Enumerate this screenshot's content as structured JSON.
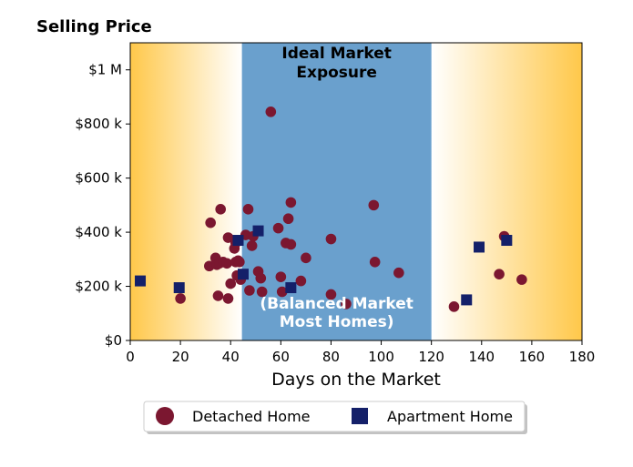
{
  "chart_data": {
    "type": "scatter",
    "ylabel": "Selling Price",
    "xlabel": "Days on the Market",
    "xlim": [
      0,
      180
    ],
    "ylim": [
      0,
      1100000
    ],
    "x_ticks": [
      0,
      20,
      40,
      60,
      80,
      100,
      120,
      140,
      160,
      180
    ],
    "x_tick_labels": [
      "0",
      "20",
      "40",
      "60",
      "80",
      "100",
      "120",
      "140",
      "160",
      "180"
    ],
    "y_ticks": [
      0,
      200000,
      400000,
      600000,
      800000,
      1000000
    ],
    "y_tick_labels": [
      "$0",
      "$200 k",
      "$400 k",
      "$600 k",
      "$800 k",
      "$1 M"
    ],
    "grid": false,
    "legend_position": "bottom-center",
    "zones": {
      "balanced_range": [
        44.5,
        120
      ],
      "balanced_color": "#6aa0cd",
      "gradient_color": "#ffc84a",
      "ideal_label_line1": "Ideal Market",
      "ideal_label_line2": "Exposure",
      "balanced_label_line1": "(Balanced Market",
      "balanced_label_line2": "Most Homes)"
    },
    "series": [
      {
        "name": "Detached Home",
        "marker": "circle",
        "color": "#7b1730",
        "points": [
          [
            20,
            155000
          ],
          [
            31.5,
            275000
          ],
          [
            32,
            435000
          ],
          [
            34,
            305000
          ],
          [
            34.5,
            280000
          ],
          [
            35,
            165000
          ],
          [
            35.5,
            285000
          ],
          [
            36,
            485000
          ],
          [
            37,
            290000
          ],
          [
            38.5,
            285000
          ],
          [
            39,
            155000
          ],
          [
            39,
            380000
          ],
          [
            40,
            210000
          ],
          [
            41.5,
            340000
          ],
          [
            42,
            290000
          ],
          [
            42,
            360000
          ],
          [
            42.5,
            240000
          ],
          [
            43,
            295000
          ],
          [
            43.5,
            290000
          ],
          [
            44,
            225000
          ],
          [
            46,
            390000
          ],
          [
            47,
            485000
          ],
          [
            47.5,
            185000
          ],
          [
            48.5,
            350000
          ],
          [
            49,
            385000
          ],
          [
            51,
            255000
          ],
          [
            52,
            230000
          ],
          [
            52.5,
            180000
          ],
          [
            56,
            845000
          ],
          [
            59,
            415000
          ],
          [
            60,
            235000
          ],
          [
            60.5,
            180000
          ],
          [
            62,
            360000
          ],
          [
            63,
            450000
          ],
          [
            64,
            355000
          ],
          [
            64,
            510000
          ],
          [
            68,
            220000
          ],
          [
            70,
            305000
          ],
          [
            80,
            375000
          ],
          [
            80,
            170000
          ],
          [
            86,
            135000
          ],
          [
            97,
            500000
          ],
          [
            97.5,
            290000
          ],
          [
            107,
            250000
          ],
          [
            129,
            125000
          ],
          [
            147,
            245000
          ],
          [
            149,
            385000
          ],
          [
            156,
            225000
          ]
        ]
      },
      {
        "name": "Apartment Home",
        "marker": "square",
        "color": "#142069",
        "points": [
          [
            4,
            220000
          ],
          [
            19.5,
            195000
          ],
          [
            43,
            370000
          ],
          [
            45,
            245000
          ],
          [
            51,
            405000
          ],
          [
            64,
            195000
          ],
          [
            134,
            150000
          ],
          [
            139,
            345000
          ],
          [
            150,
            370000
          ]
        ]
      }
    ]
  }
}
